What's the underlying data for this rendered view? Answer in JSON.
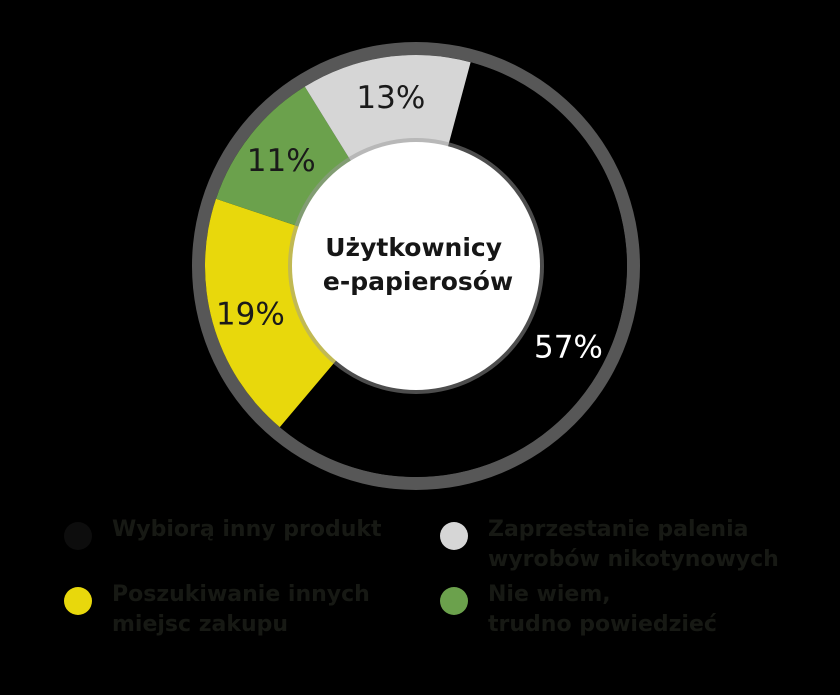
{
  "chart_data": {
    "type": "pie",
    "center_label": "Użytkownicy\ne-papierosów",
    "slices": [
      {
        "label": "Wybiorą inny produkt",
        "value": 57,
        "value_label": "57%",
        "color": "#000000",
        "label_color": "#ffffff"
      },
      {
        "label": "Poszukiwanie innych\nmiejsc zakupu",
        "value": 19,
        "value_label": "19%",
        "color": "#e8d80c",
        "label_color": "#1a1a1a"
      },
      {
        "label": "Nie wiem,\ntrudno powiedzieć",
        "value": 11,
        "value_label": "11%",
        "color": "#6ba14c",
        "label_color": "#1a1a1a"
      },
      {
        "label": "Zaprzestanie palenia\nwyrobów nikotynowych",
        "value": 13,
        "value_label": "13%",
        "color": "#d6d6d6",
        "label_color": "#1a1a1a"
      }
    ],
    "legend": [
      {
        "label": "Wybiorą inny produkt",
        "color": "#0d0d0d"
      },
      {
        "label": "Zaprzestanie palenia\nwyrobów nikotynowych",
        "color": "#d6d6d6"
      },
      {
        "label": "Poszukiwanie innych\nmiejsc zakupu",
        "color": "#e8d80c"
      },
      {
        "label": "Nie wiem,\ntrudno powiedzieć",
        "color": "#6ba14c"
      }
    ],
    "legend_position": "bottom",
    "ring_color": "#555555",
    "background": "#000000"
  }
}
